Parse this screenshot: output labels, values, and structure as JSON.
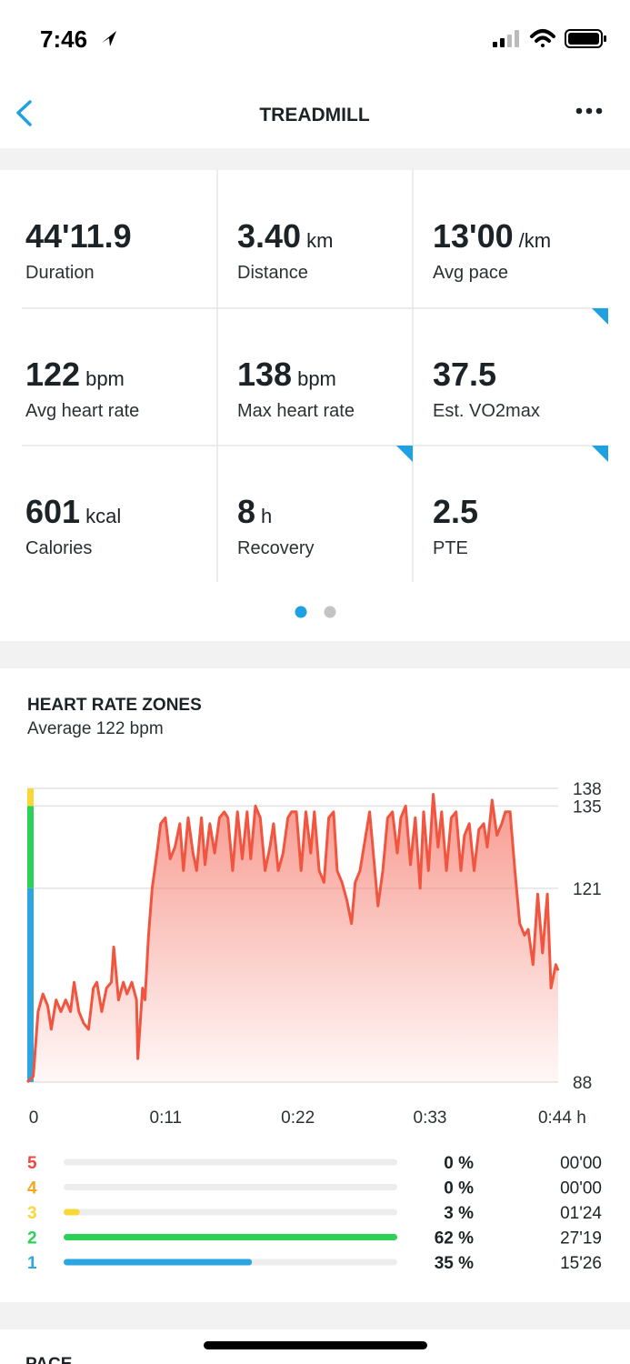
{
  "status_bar": {
    "time": "7:46"
  },
  "header": {
    "title": "TREADMILL"
  },
  "stats": [
    {
      "value": "44'11.9",
      "label": "Duration"
    },
    {
      "value": "3.40",
      "unit": "km",
      "label": "Distance"
    },
    {
      "value": "13'00",
      "unit": "/km",
      "label": "Avg pace"
    },
    {
      "value": "122",
      "unit": "bpm",
      "label": "Avg heart rate"
    },
    {
      "value": "138",
      "unit": "bpm",
      "label": "Max heart rate"
    },
    {
      "value": "37.5",
      "label": "Est. VO2max",
      "flagged": true
    },
    {
      "value": "601",
      "unit": "kcal",
      "label": "Calories"
    },
    {
      "value": "8",
      "unit": "h",
      "label": "Recovery",
      "flagged": true
    },
    {
      "value": "2.5",
      "label": "PTE",
      "flagged": true
    }
  ],
  "heart_rate_zones": {
    "title": "HEART RATE ZONES",
    "subtitle": "Average 122 bpm"
  },
  "chart_data": {
    "type": "line",
    "x": [
      0,
      0.5,
      0.9,
      1.3,
      1.7,
      2.0,
      2.4,
      2.8,
      3.2,
      3.6,
      3.9,
      4.3,
      4.7,
      5.1,
      5.5,
      5.8,
      6.2,
      6.6,
      7.0,
      7.2,
      7.6,
      8.0,
      8.3,
      8.7,
      9.1,
      9.2,
      9.6,
      9.8,
      10.1,
      10.4,
      10.8,
      11.1,
      11.5,
      11.9,
      12.3,
      12.7,
      13.0,
      13.4,
      13.8,
      14.1,
      14.5,
      14.8,
      15.2,
      15.6,
      16.0,
      16.4,
      16.7,
      17.1,
      17.5,
      17.9,
      18.3,
      18.6,
      19.0,
      19.4,
      19.8,
      20.2,
      20.5,
      20.9,
      21.3,
      21.7,
      22.0,
      22.4,
      22.8,
      23.2,
      23.6,
      23.9,
      24.3,
      24.7,
      25.1,
      25.5,
      25.8,
      26.2,
      26.6,
      27.0,
      27.3,
      27.7,
      28.1,
      28.5,
      28.9,
      29.2,
      29.6,
      30.0,
      30.4,
      30.8,
      31.1,
      31.5,
      31.9,
      32.3,
      32.7,
      33.0,
      33.4,
      33.8,
      34.2,
      34.5,
      34.9,
      35.3,
      35.7,
      36.1,
      36.4,
      36.8,
      37.2,
      37.6,
      38.0,
      38.3,
      38.7,
      39.1,
      39.5,
      39.8,
      40.2,
      40.6,
      41.0,
      41.4,
      41.7,
      42.1,
      42.5,
      42.9,
      43.3,
      43.6,
      44.0,
      44.2
    ],
    "series": [
      {
        "color": "#f2553f",
        "values": [
          88,
          89,
          100,
          103,
          101,
          97,
          102,
          100,
          102,
          100,
          105,
          100,
          98,
          97,
          104,
          105,
          100,
          104,
          105,
          111,
          102,
          105,
          103,
          105,
          102,
          92,
          104,
          102,
          113,
          121,
          127,
          132,
          133,
          126,
          128,
          132,
          124,
          133,
          127,
          124,
          133,
          125,
          132,
          127,
          133,
          134,
          133,
          124,
          134,
          126,
          134,
          126,
          135,
          133,
          124,
          128,
          132,
          124,
          127,
          133,
          134,
          134,
          124,
          134,
          127,
          134,
          124,
          122,
          133,
          134,
          124,
          122,
          119,
          115,
          122,
          124,
          129,
          134,
          125,
          118,
          124,
          133,
          134,
          127,
          133,
          135,
          125,
          133,
          121,
          134,
          124,
          137,
          128,
          134,
          124,
          133,
          134,
          124,
          130,
          132,
          124,
          131,
          132,
          128,
          136,
          130,
          132,
          134,
          134,
          124,
          115,
          113,
          114,
          108,
          120,
          110,
          120,
          104,
          108,
          107
        ]
      }
    ],
    "xlim": [
      0,
      44.2
    ],
    "xticks": [
      0,
      {
        "value": 11,
        "label": "0:11"
      },
      {
        "value": 22,
        "label": "0:22"
      },
      {
        "value": 33,
        "label": "0:33"
      },
      {
        "value": 44,
        "label": "0:44 h"
      }
    ],
    "ylim": [
      88,
      138
    ],
    "yticks": [
      88,
      121,
      135,
      138
    ],
    "grid": true
  },
  "zones": {
    "names": [
      "5",
      "4",
      "3",
      "2",
      "1"
    ],
    "colors": [
      "#f0483e",
      "#f5a623",
      "#f8d838",
      "#2ed158",
      "#2ba6e0"
    ],
    "values": [
      0,
      0,
      3,
      62,
      35
    ],
    "value_labels": [
      "0 %",
      "0 %",
      "3 %",
      "62 %",
      "35 %"
    ],
    "times": [
      "00'00",
      "00'00",
      "01'24",
      "27'19",
      "15'26"
    ]
  },
  "next_section": "PACE"
}
